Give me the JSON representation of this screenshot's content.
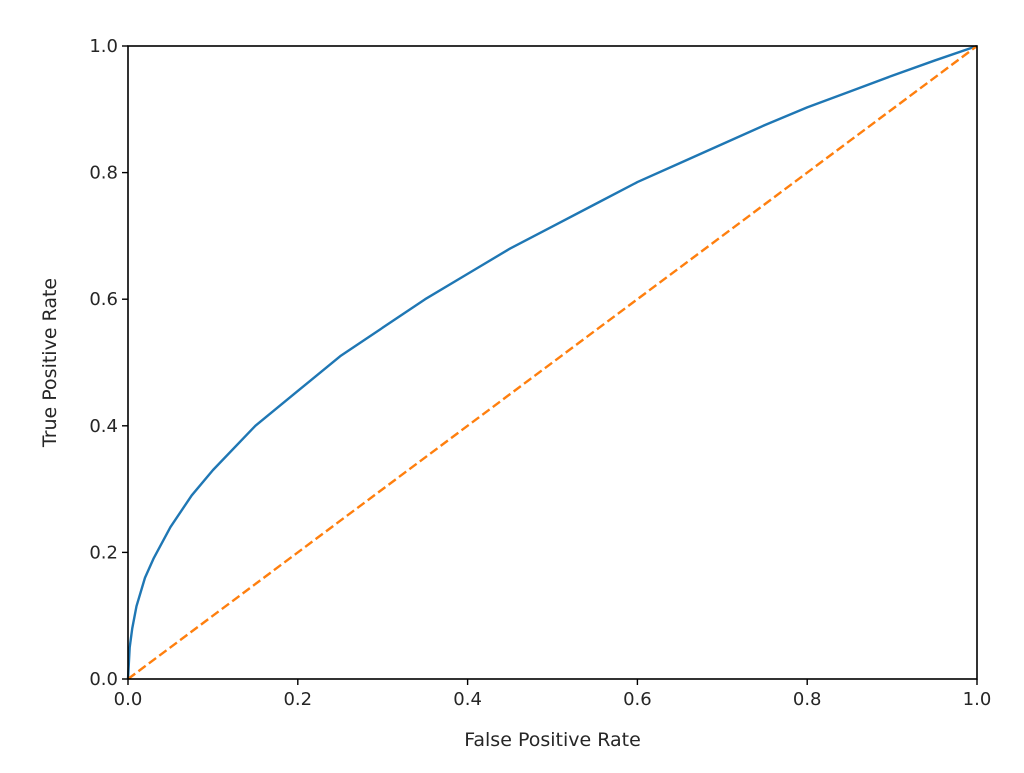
{
  "chart_data": {
    "type": "line",
    "title": "",
    "xlabel": "False Positive Rate",
    "ylabel": "True Positive Rate",
    "xlim": [
      0.0,
      1.0
    ],
    "ylim": [
      0.0,
      1.0
    ],
    "xticks": [
      "0.0",
      "0.2",
      "0.4",
      "0.6",
      "0.8",
      "1.0"
    ],
    "yticks": [
      "0.0",
      "0.2",
      "0.4",
      "0.6",
      "0.8",
      "1.0"
    ],
    "grid": false,
    "series": [
      {
        "color": "#1f77b4",
        "linestyle": "solid",
        "x": [
          0.0,
          0.002,
          0.005,
          0.01,
          0.02,
          0.03,
          0.05,
          0.075,
          0.1,
          0.15,
          0.2,
          0.25,
          0.3,
          0.35,
          0.4,
          0.45,
          0.5,
          0.55,
          0.6,
          0.65,
          0.7,
          0.75,
          0.8,
          0.85,
          0.9,
          0.95,
          1.0
        ],
        "y": [
          0.0,
          0.05,
          0.08,
          0.115,
          0.16,
          0.19,
          0.24,
          0.29,
          0.33,
          0.4,
          0.455,
          0.51,
          0.555,
          0.6,
          0.64,
          0.68,
          0.715,
          0.75,
          0.785,
          0.815,
          0.845,
          0.875,
          0.903,
          0.928,
          0.953,
          0.977,
          1.0
        ]
      },
      {
        "color": "#ff7f0e",
        "linestyle": "dashed",
        "x": [
          0.0,
          1.0
        ],
        "y": [
          0.0,
          1.0
        ]
      }
    ]
  }
}
